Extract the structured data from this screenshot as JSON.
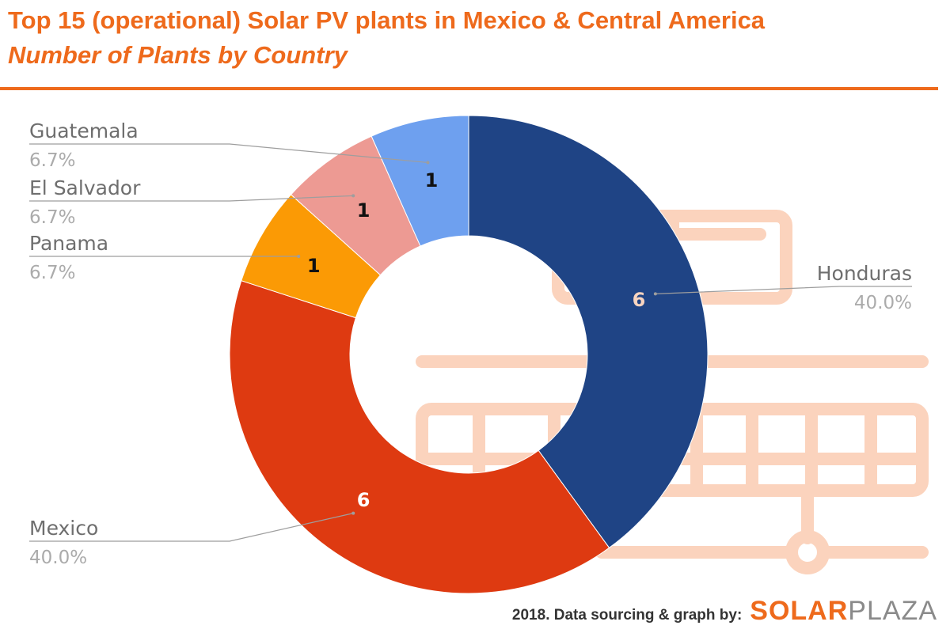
{
  "header": {
    "title": "Top 15 (operational) Solar PV plants in Mexico & Central America",
    "subtitle": "Number of Plants by Country"
  },
  "footer": {
    "credit": "2018. Data sourcing & graph by:",
    "brand_bold": "SOLAR",
    "brand_light": "PLAZA"
  },
  "colors": {
    "accent": "#ee6a1c",
    "watermark": "#fbd3bd"
  },
  "chart_data": {
    "type": "pie",
    "style": "donut",
    "slices": [
      {
        "name": "Honduras",
        "value": 6,
        "value_label": "6",
        "percent_label": "40.0%",
        "color": "#1f4485",
        "label_color": "#f7d4c0"
      },
      {
        "name": "Mexico",
        "value": 6,
        "value_label": "6",
        "percent_label": "40.0%",
        "color": "#de3a11",
        "label_color": "#ffffff"
      },
      {
        "name": "Panama",
        "value": 1,
        "value_label": "1",
        "percent_label": "6.7%",
        "color": "#fb9a05",
        "label_color": "#111111"
      },
      {
        "name": "El Salvador",
        "value": 1,
        "value_label": "1",
        "percent_label": "6.7%",
        "color": "#ed9a93",
        "label_color": "#111111"
      },
      {
        "name": "Guatemala",
        "value": 1,
        "value_label": "1",
        "percent_label": "6.7%",
        "color": "#6ea0ef",
        "label_color": "#111111"
      }
    ],
    "legend": "callout labels"
  }
}
